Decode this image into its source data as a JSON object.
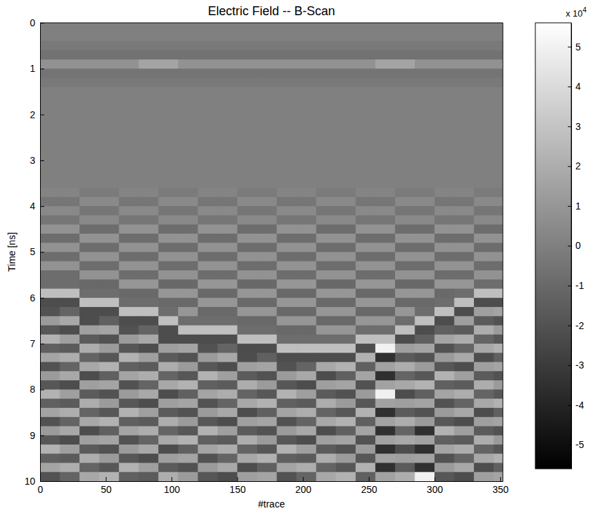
{
  "chart_data": {
    "type": "heatmap",
    "title": "Electric Field -- B-Scan",
    "xlabel": "#trace",
    "ylabel": "Time [ns]",
    "xlim": [
      0,
      352
    ],
    "ylim": [
      0,
      10
    ],
    "xticks": [
      0,
      50,
      100,
      150,
      200,
      250,
      300,
      350
    ],
    "yticks": [
      0,
      1,
      2,
      3,
      4,
      5,
      6,
      7,
      8,
      9,
      10
    ],
    "colorbar_range": [
      -5.6,
      5.6
    ],
    "colorbar_ticks": [
      -5,
      -4,
      -3,
      -2,
      -1,
      0,
      1,
      2,
      3,
      4,
      5
    ],
    "colorbar_multiplier": {
      "base": "x 10",
      "exponent": "4"
    },
    "x": [
      7.5,
      22.5,
      37.5,
      52.5,
      67.5,
      82.5,
      97.5,
      112.5,
      127.5,
      142.5,
      157.5,
      172.5,
      187.5,
      202.5,
      217.5,
      232.5,
      247.5,
      262.5,
      277.5,
      292.5,
      307.5,
      322.5,
      337.5,
      352.5
    ],
    "y": [
      0.1,
      0.3,
      0.5,
      0.7,
      0.9,
      1.1,
      1.3,
      1.5,
      1.7,
      1.9,
      2.1,
      2.3,
      2.5,
      2.7,
      2.9,
      3.1,
      3.3,
      3.5,
      3.7,
      3.9,
      4.1,
      4.3,
      4.5,
      4.7,
      4.9,
      5.1,
      5.3,
      5.5,
      5.7,
      5.9,
      6.1,
      6.3,
      6.5,
      6.7,
      6.9,
      7.1,
      7.3,
      7.5,
      7.7,
      7.9,
      8.1,
      8.3,
      8.5,
      8.7,
      8.9,
      9.1,
      9.3,
      9.5,
      9.7,
      9.9
    ],
    "values": [
      [
        0,
        0,
        0,
        0,
        0,
        0,
        0,
        0,
        0,
        0,
        0,
        0,
        0,
        0,
        0,
        0,
        0,
        0,
        0,
        0,
        0,
        0,
        0,
        0
      ],
      [
        0,
        0,
        0,
        0,
        0,
        0,
        0,
        0,
        0,
        0,
        0,
        0,
        0,
        0,
        0,
        0,
        0,
        0,
        0,
        0,
        0,
        0,
        0,
        0
      ],
      [
        -0.3,
        -0.3,
        -0.3,
        -0.3,
        -0.3,
        -0.3,
        -0.3,
        -0.3,
        -0.3,
        -0.3,
        -0.3,
        -0.3,
        -0.3,
        -0.3,
        -0.3,
        -0.3,
        -0.3,
        -0.3,
        -0.3,
        -0.3,
        -0.3,
        -0.3,
        -0.3,
        -0.3
      ],
      [
        -0.6,
        -0.6,
        -0.6,
        -0.6,
        -0.6,
        -0.6,
        -0.6,
        -0.6,
        -0.6,
        -0.6,
        -0.6,
        -0.6,
        -0.6,
        -0.6,
        -0.6,
        -0.6,
        -0.6,
        -0.6,
        -0.6,
        -0.6,
        -0.6,
        -0.6,
        -0.6,
        -0.6
      ],
      [
        0.8,
        0.8,
        0.8,
        0.8,
        0.8,
        1.6,
        1.6,
        0.8,
        0.8,
        0.8,
        0.8,
        0.8,
        0.8,
        0.8,
        0.8,
        0.8,
        0.8,
        1.6,
        1.6,
        0.8,
        0.8,
        0.8,
        0.8,
        0.8
      ],
      [
        -0.5,
        -0.5,
        -0.5,
        -0.5,
        -0.5,
        -0.5,
        -0.5,
        -0.5,
        -0.5,
        -0.5,
        -0.5,
        -0.5,
        -0.5,
        -0.5,
        -0.5,
        -0.5,
        -0.5,
        -0.5,
        -0.5,
        -0.5,
        -0.5,
        -0.5,
        -0.5,
        -0.5
      ],
      [
        -0.3,
        -0.3,
        -0.3,
        -0.3,
        -0.3,
        -0.3,
        -0.3,
        -0.3,
        -0.3,
        -0.3,
        -0.3,
        -0.3,
        -0.3,
        -0.3,
        -0.3,
        -0.3,
        -0.3,
        -0.3,
        -0.3,
        -0.3,
        -0.3,
        -0.3,
        -0.3,
        -0.3
      ],
      [
        0,
        0,
        0,
        0,
        0,
        0,
        0,
        0,
        0,
        0,
        0,
        0,
        0,
        0,
        0,
        0,
        0,
        0,
        0,
        0,
        0,
        0,
        0,
        0
      ],
      [
        0,
        0,
        0,
        0,
        0,
        0,
        0,
        0,
        0,
        0,
        0,
        0,
        0,
        0,
        0,
        0,
        0,
        0,
        0,
        0,
        0,
        0,
        0,
        0
      ],
      [
        0,
        0,
        0,
        0,
        0,
        0,
        0,
        0,
        0,
        0,
        0,
        0,
        0,
        0,
        0,
        0,
        0,
        0,
        0,
        0,
        0,
        0,
        0,
        0
      ],
      [
        0,
        0,
        0,
        0,
        0,
        0,
        0,
        0,
        0,
        0,
        0,
        0,
        0,
        0,
        0,
        0,
        0,
        0,
        0,
        0,
        0,
        0,
        0,
        0
      ],
      [
        0,
        0,
        0,
        0,
        0,
        0,
        0,
        0,
        0,
        0,
        0,
        0,
        0,
        0,
        0,
        0,
        0,
        0,
        0,
        0,
        0,
        0,
        0,
        0
      ],
      [
        0,
        0,
        0,
        0,
        0,
        0,
        0,
        0,
        0,
        0,
        0,
        0,
        0,
        0,
        0,
        0,
        0,
        0,
        0,
        0,
        0,
        0,
        0,
        0
      ],
      [
        0,
        0,
        0,
        0,
        0,
        0,
        0,
        0,
        0,
        0,
        0,
        0,
        0,
        0,
        0,
        0,
        0,
        0,
        0,
        0,
        0,
        0,
        0,
        0
      ],
      [
        0,
        0,
        0,
        0,
        0,
        0,
        0,
        0,
        0,
        0,
        0,
        0,
        0,
        0,
        0,
        0,
        0,
        0,
        0,
        0,
        0,
        0,
        0,
        0
      ],
      [
        0,
        0,
        0,
        0,
        0,
        0,
        0,
        0,
        0,
        0,
        0,
        0,
        0,
        0,
        0,
        0,
        0,
        0,
        0,
        0,
        0,
        0,
        0,
        0
      ],
      [
        0,
        0,
        0,
        0,
        0,
        0,
        0,
        0,
        0,
        0,
        0,
        0,
        0,
        0,
        0,
        0,
        0,
        0,
        0,
        0,
        0,
        0,
        0,
        0
      ],
      [
        0,
        0,
        0,
        0,
        0,
        0,
        0,
        0,
        0,
        0,
        0,
        0,
        0,
        0,
        0,
        0,
        0,
        0,
        0,
        0,
        0,
        0,
        0,
        0
      ],
      [
        0.2,
        0.2,
        -0.2,
        -0.2,
        0.2,
        0.2,
        -0.2,
        -0.2,
        0.2,
        0.2,
        -0.2,
        -0.2,
        0.2,
        0.2,
        -0.2,
        -0.2,
        0.2,
        0.2,
        -0.2,
        -0.2,
        0.2,
        0.2,
        -0.2,
        -0.2
      ],
      [
        -0.4,
        -0.4,
        0.4,
        0.4,
        -0.4,
        -0.4,
        0.4,
        0.4,
        -0.4,
        -0.4,
        0.4,
        0.4,
        -0.4,
        -0.4,
        0.4,
        0.4,
        -0.4,
        -0.4,
        0.4,
        0.4,
        -0.4,
        -0.4,
        0.4,
        0.4
      ],
      [
        0.4,
        0.4,
        -0.4,
        -0.4,
        0.4,
        0.4,
        -0.4,
        -0.4,
        0.4,
        0.4,
        -0.4,
        -0.4,
        0.4,
        0.4,
        -0.4,
        -0.4,
        0.4,
        0.4,
        -0.4,
        -0.4,
        0.4,
        0.4,
        -0.4,
        -0.4
      ],
      [
        -0.4,
        -0.4,
        0.4,
        0.4,
        -0.4,
        -0.4,
        0.4,
        0.4,
        -0.4,
        -0.4,
        0.4,
        0.4,
        -0.4,
        -0.4,
        0.4,
        0.4,
        -0.4,
        -0.4,
        0.4,
        0.4,
        -0.4,
        -0.4,
        0.4,
        0.4
      ],
      [
        0.8,
        0.8,
        -0.8,
        -0.8,
        0.8,
        0.8,
        -0.8,
        -0.8,
        0.8,
        0.8,
        -0.8,
        -0.8,
        0.8,
        0.8,
        -0.8,
        -0.8,
        0.8,
        0.8,
        -0.8,
        -0.8,
        0.8,
        0.8,
        -0.8,
        -0.8
      ],
      [
        -0.8,
        -0.8,
        0.8,
        0.8,
        -0.8,
        -0.8,
        0.8,
        0.8,
        -0.8,
        -0.8,
        0.8,
        0.8,
        -0.8,
        -0.8,
        0.8,
        0.8,
        -0.8,
        -0.8,
        0.8,
        0.8,
        -0.8,
        -0.8,
        0.8,
        0.8
      ],
      [
        0.8,
        0.8,
        -0.8,
        -0.8,
        0.8,
        0.8,
        -0.8,
        -0.8,
        0.8,
        0.8,
        -0.8,
        -0.8,
        0.8,
        0.8,
        -0.8,
        -0.8,
        0.8,
        0.8,
        -0.8,
        -0.8,
        0.8,
        0.8,
        -0.8,
        -0.8
      ],
      [
        -0.8,
        -0.8,
        0.8,
        0.8,
        -0.8,
        -0.8,
        0.8,
        0.8,
        -0.8,
        -0.8,
        0.8,
        0.8,
        -0.8,
        -0.8,
        0.8,
        0.8,
        -0.8,
        -0.8,
        0.8,
        0.8,
        -0.8,
        -0.8,
        0.8,
        0.8
      ],
      [
        0.8,
        0.8,
        -0.8,
        -0.8,
        0.8,
        0.8,
        -0.8,
        -0.8,
        0.8,
        0.8,
        -0.8,
        -0.8,
        0.8,
        0.8,
        -0.8,
        -0.8,
        0.8,
        0.8,
        -0.8,
        -0.8,
        0.8,
        0.8,
        -0.8,
        -0.8
      ],
      [
        -0.8,
        -0.8,
        0.8,
        0.8,
        -0.8,
        -0.8,
        0.8,
        0.8,
        -0.8,
        -0.8,
        0.8,
        0.8,
        -0.8,
        -0.8,
        0.8,
        0.8,
        -0.8,
        -0.8,
        0.8,
        0.8,
        -0.8,
        -0.8,
        0.8,
        0.8
      ],
      [
        -0.8,
        -0.8,
        -1,
        -1,
        1,
        1,
        -1,
        -1,
        1,
        1,
        -1,
        -1,
        1,
        1,
        -1,
        -1,
        1,
        1,
        -1,
        -1,
        1,
        1,
        -0.8,
        -0.8
      ],
      [
        2.8,
        2.8,
        -0.8,
        -0.8,
        -1,
        -1,
        1,
        1,
        -1,
        -1,
        1,
        1,
        -1,
        -1,
        1,
        1,
        -1,
        -1,
        1,
        1,
        -1,
        -0.8,
        2.8,
        2.8
      ],
      [
        -2.2,
        -2.2,
        2.8,
        2.8,
        -0.8,
        -0.8,
        -1,
        -1,
        1,
        1,
        -1,
        -1,
        1,
        1,
        -1,
        -1,
        1,
        1,
        -1,
        -1,
        -0.8,
        2.8,
        -2.2,
        -2.2
      ],
      [
        -2,
        -1.2,
        -2.2,
        -2.2,
        2.8,
        2.8,
        -0.8,
        1,
        -1,
        -1,
        1,
        1,
        -1,
        -1,
        1,
        1,
        -1,
        -1,
        1,
        -0.8,
        2.8,
        -2.2,
        1.4,
        1.6
      ],
      [
        1.2,
        1.8,
        -2.2,
        -1.4,
        -2.2,
        -2.2,
        2.8,
        -0.8,
        -0.8,
        -0.8,
        -1,
        -1,
        1,
        1,
        -1,
        -1,
        1,
        1,
        -0.8,
        2.8,
        -2.2,
        1.4,
        -1.6,
        -2
      ],
      [
        -1.8,
        -2.2,
        1.4,
        1.6,
        -2,
        -1.2,
        -2.2,
        2.8,
        2.8,
        2.8,
        -0.8,
        -0.8,
        -1,
        -1,
        1,
        1,
        -0.8,
        -0.8,
        2.8,
        -2.2,
        -1.4,
        -1.6,
        2,
        1.2
      ],
      [
        2.2,
        1.4,
        -1.6,
        -2,
        1.2,
        1.8,
        -2.2,
        -2.2,
        -2.2,
        -2.2,
        2.8,
        2.8,
        -0.8,
        -0.8,
        -0.8,
        -0.8,
        2.8,
        2.8,
        -2.2,
        -1.4,
        1.6,
        2,
        -1.2,
        -1.8
      ],
      [
        -1.4,
        -1.6,
        2,
        1.2,
        -1.8,
        -2.2,
        1.4,
        1.6,
        -2,
        -1.2,
        -2.2,
        -2.2,
        2.8,
        2.8,
        2.8,
        2.8,
        -2.2,
        5,
        1.4,
        1.6,
        -2,
        -1.2,
        1.8,
        2.2
      ],
      [
        1.6,
        2,
        -1.2,
        -1.8,
        2.2,
        1.4,
        -1.6,
        -2,
        1.2,
        1.8,
        -2.2,
        -1.4,
        -2.2,
        -2.2,
        -2.2,
        -2.2,
        2.2,
        -3.5,
        -1.6,
        -2,
        1.2,
        1.8,
        -2.2,
        -1.4
      ],
      [
        -2,
        -1.2,
        1.8,
        2.2,
        -1.4,
        -1.6,
        2,
        1.2,
        -1.8,
        -2.2,
        1.4,
        1.6,
        -2,
        -1.2,
        1.8,
        2.2,
        -1.4,
        1.5,
        2,
        1.2,
        -1.8,
        -2.2,
        1.4,
        1.6
      ],
      [
        1.2,
        1.8,
        -2.2,
        -1.4,
        1.6,
        2,
        -1.2,
        -1.8,
        2.2,
        1.4,
        -1.6,
        -2,
        1.2,
        1.8,
        -2.2,
        -1.4,
        1.6,
        -3.5,
        -1.2,
        -1.8,
        2.2,
        1.4,
        -1.6,
        -2
      ],
      [
        -1.8,
        -2.2,
        1.4,
        1.6,
        -2,
        -1.2,
        1.8,
        2.2,
        -1.4,
        -1.6,
        2,
        1.2,
        -1.8,
        -2.2,
        1.4,
        1.6,
        -2,
        1.5,
        1.8,
        2.2,
        -1.4,
        -1.6,
        2,
        1.2
      ],
      [
        2.2,
        1.4,
        -1.6,
        -2,
        1.2,
        1.8,
        -2.2,
        -1.4,
        1.6,
        2,
        -1.2,
        -1.8,
        2.2,
        1.4,
        -1.6,
        -2,
        1.2,
        5,
        -2.2,
        -1.4,
        1.6,
        2,
        -1.2,
        -1.8
      ],
      [
        -1.4,
        -1.6,
        2,
        1.2,
        -1.8,
        -2.2,
        1.4,
        1.6,
        -2,
        -1.2,
        1.8,
        2.2,
        -1.4,
        -1.6,
        2,
        1.2,
        -1.8,
        1.5,
        1.4,
        1.6,
        -2,
        -1.2,
        1.8,
        2.2
      ],
      [
        1.6,
        2,
        -1.2,
        -1.8,
        2.2,
        1.4,
        -1.6,
        -2,
        1.2,
        1.8,
        -2.2,
        -1.4,
        1.6,
        2,
        -1.2,
        -1.8,
        2.2,
        -3.5,
        -1.6,
        -2,
        1.2,
        1.8,
        -2.2,
        -1.4
      ],
      [
        -2,
        -1.2,
        1.8,
        2.2,
        -1.4,
        -1.6,
        2,
        1.2,
        -1.8,
        -2.2,
        1.4,
        1.6,
        -2,
        -1.2,
        1.8,
        2.2,
        -1.4,
        1.5,
        2,
        1.2,
        -1.8,
        -2.2,
        1.4,
        1.6
      ],
      [
        1.2,
        1.8,
        -2.2,
        -1.4,
        1.6,
        2,
        -1.2,
        -1.8,
        2.2,
        1.4,
        -1.6,
        -2,
        1.2,
        1.8,
        -2.2,
        -1.4,
        1.6,
        -3.5,
        -1.2,
        -3.5,
        2.2,
        1.4,
        -1.6,
        -2
      ],
      [
        -1.8,
        -2.2,
        1.4,
        1.6,
        -2,
        -1.2,
        1.8,
        2.2,
        -1.4,
        -1.6,
        2,
        1.2,
        -1.8,
        -2.2,
        1.4,
        1.6,
        -2,
        1.5,
        1.8,
        1.5,
        -1.4,
        -1.6,
        2,
        1.2
      ],
      [
        2.2,
        1.4,
        -1.6,
        -2,
        1.2,
        1.8,
        -2.2,
        -1.4,
        1.6,
        2,
        -1.2,
        -1.8,
        2.2,
        1.4,
        -1.6,
        -2,
        1.2,
        -3.5,
        -2.2,
        -3.5,
        1.6,
        2,
        -1.2,
        -1.8
      ],
      [
        -1.4,
        -1.6,
        2,
        1.2,
        -1.8,
        -2.2,
        1.4,
        1.6,
        -2,
        -1.2,
        1.8,
        2.2,
        -1.4,
        -1.6,
        2,
        1.2,
        -1.8,
        1.5,
        1.4,
        1.5,
        -2,
        -1.2,
        1.8,
        2.2
      ],
      [
        1.6,
        2,
        -1.2,
        -1.8,
        2.2,
        1.4,
        -1.6,
        -2,
        1.2,
        1.8,
        -2.2,
        -1.4,
        1.6,
        2,
        -1.2,
        -1.8,
        2.2,
        -3.5,
        -1.6,
        -3.5,
        1.2,
        1.8,
        -2.2,
        -1.4
      ],
      [
        -2,
        -1.2,
        1.8,
        2.2,
        -1.4,
        -1.6,
        2,
        1.2,
        -1.8,
        -2.2,
        1.4,
        1.6,
        -2,
        -1.2,
        1.8,
        2.2,
        -1.4,
        1.5,
        2,
        5,
        -1.8,
        -2.2,
        1.4,
        1.6
      ]
    ]
  }
}
